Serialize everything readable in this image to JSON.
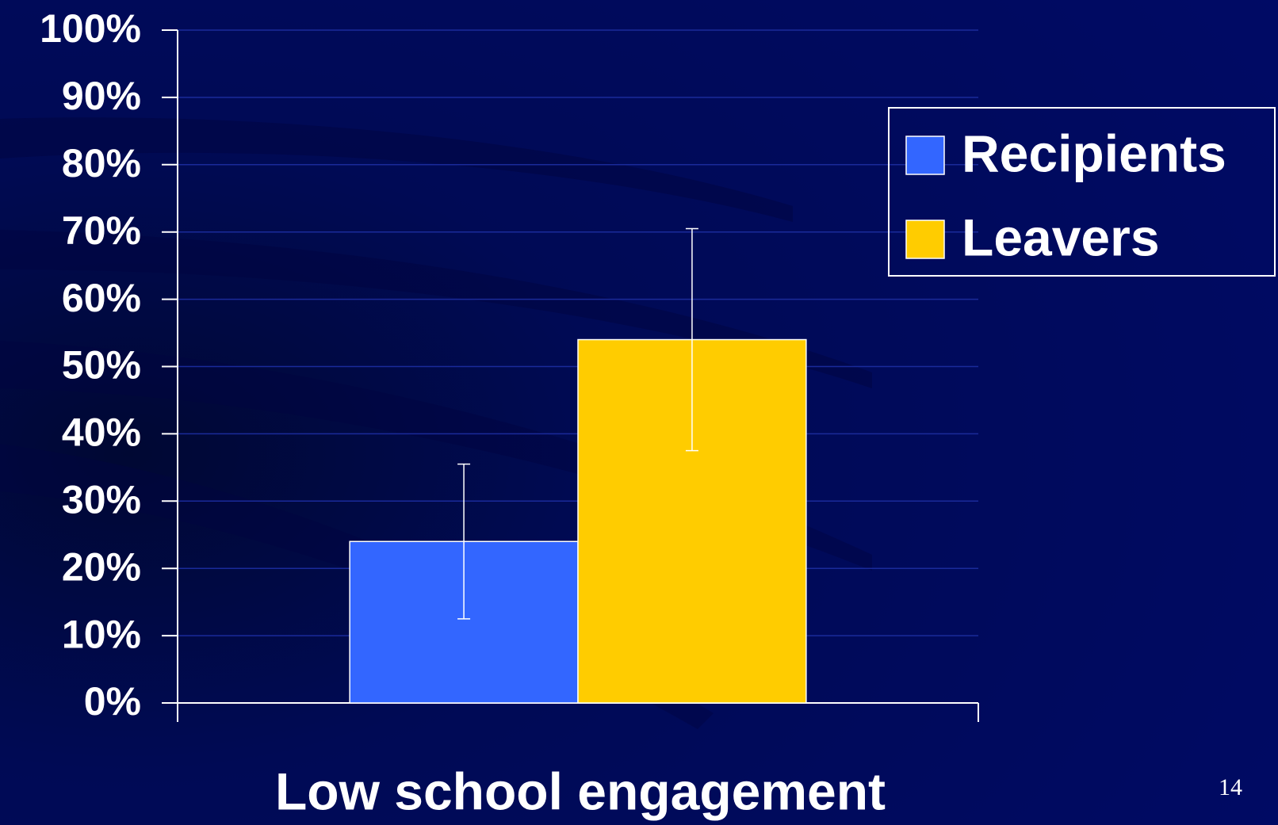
{
  "chart_data": {
    "type": "bar",
    "categories": [
      "Low school engagement"
    ],
    "series": [
      {
        "name": "Recipients",
        "color": "#3366ff",
        "values": [
          24
        ],
        "errors": [
          11.5
        ]
      },
      {
        "name": "Leavers",
        "color": "#ffcc00",
        "values": [
          54
        ],
        "errors": [
          16.5
        ]
      }
    ],
    "ylim": [
      0,
      100
    ],
    "yticks": [
      {
        "value": 0,
        "label": "0%"
      },
      {
        "value": 10,
        "label": "10%"
      },
      {
        "value": 20,
        "label": "20%"
      },
      {
        "value": 30,
        "label": "30%"
      },
      {
        "value": 40,
        "label": "40%"
      },
      {
        "value": 50,
        "label": "50%"
      },
      {
        "value": 60,
        "label": "60%"
      },
      {
        "value": 70,
        "label": "70%"
      },
      {
        "value": 80,
        "label": "80%"
      },
      {
        "value": 90,
        "label": "90%"
      },
      {
        "value": 100,
        "label": "100%"
      }
    ],
    "grid": true,
    "legend": "upper right",
    "page_number": "14"
  }
}
